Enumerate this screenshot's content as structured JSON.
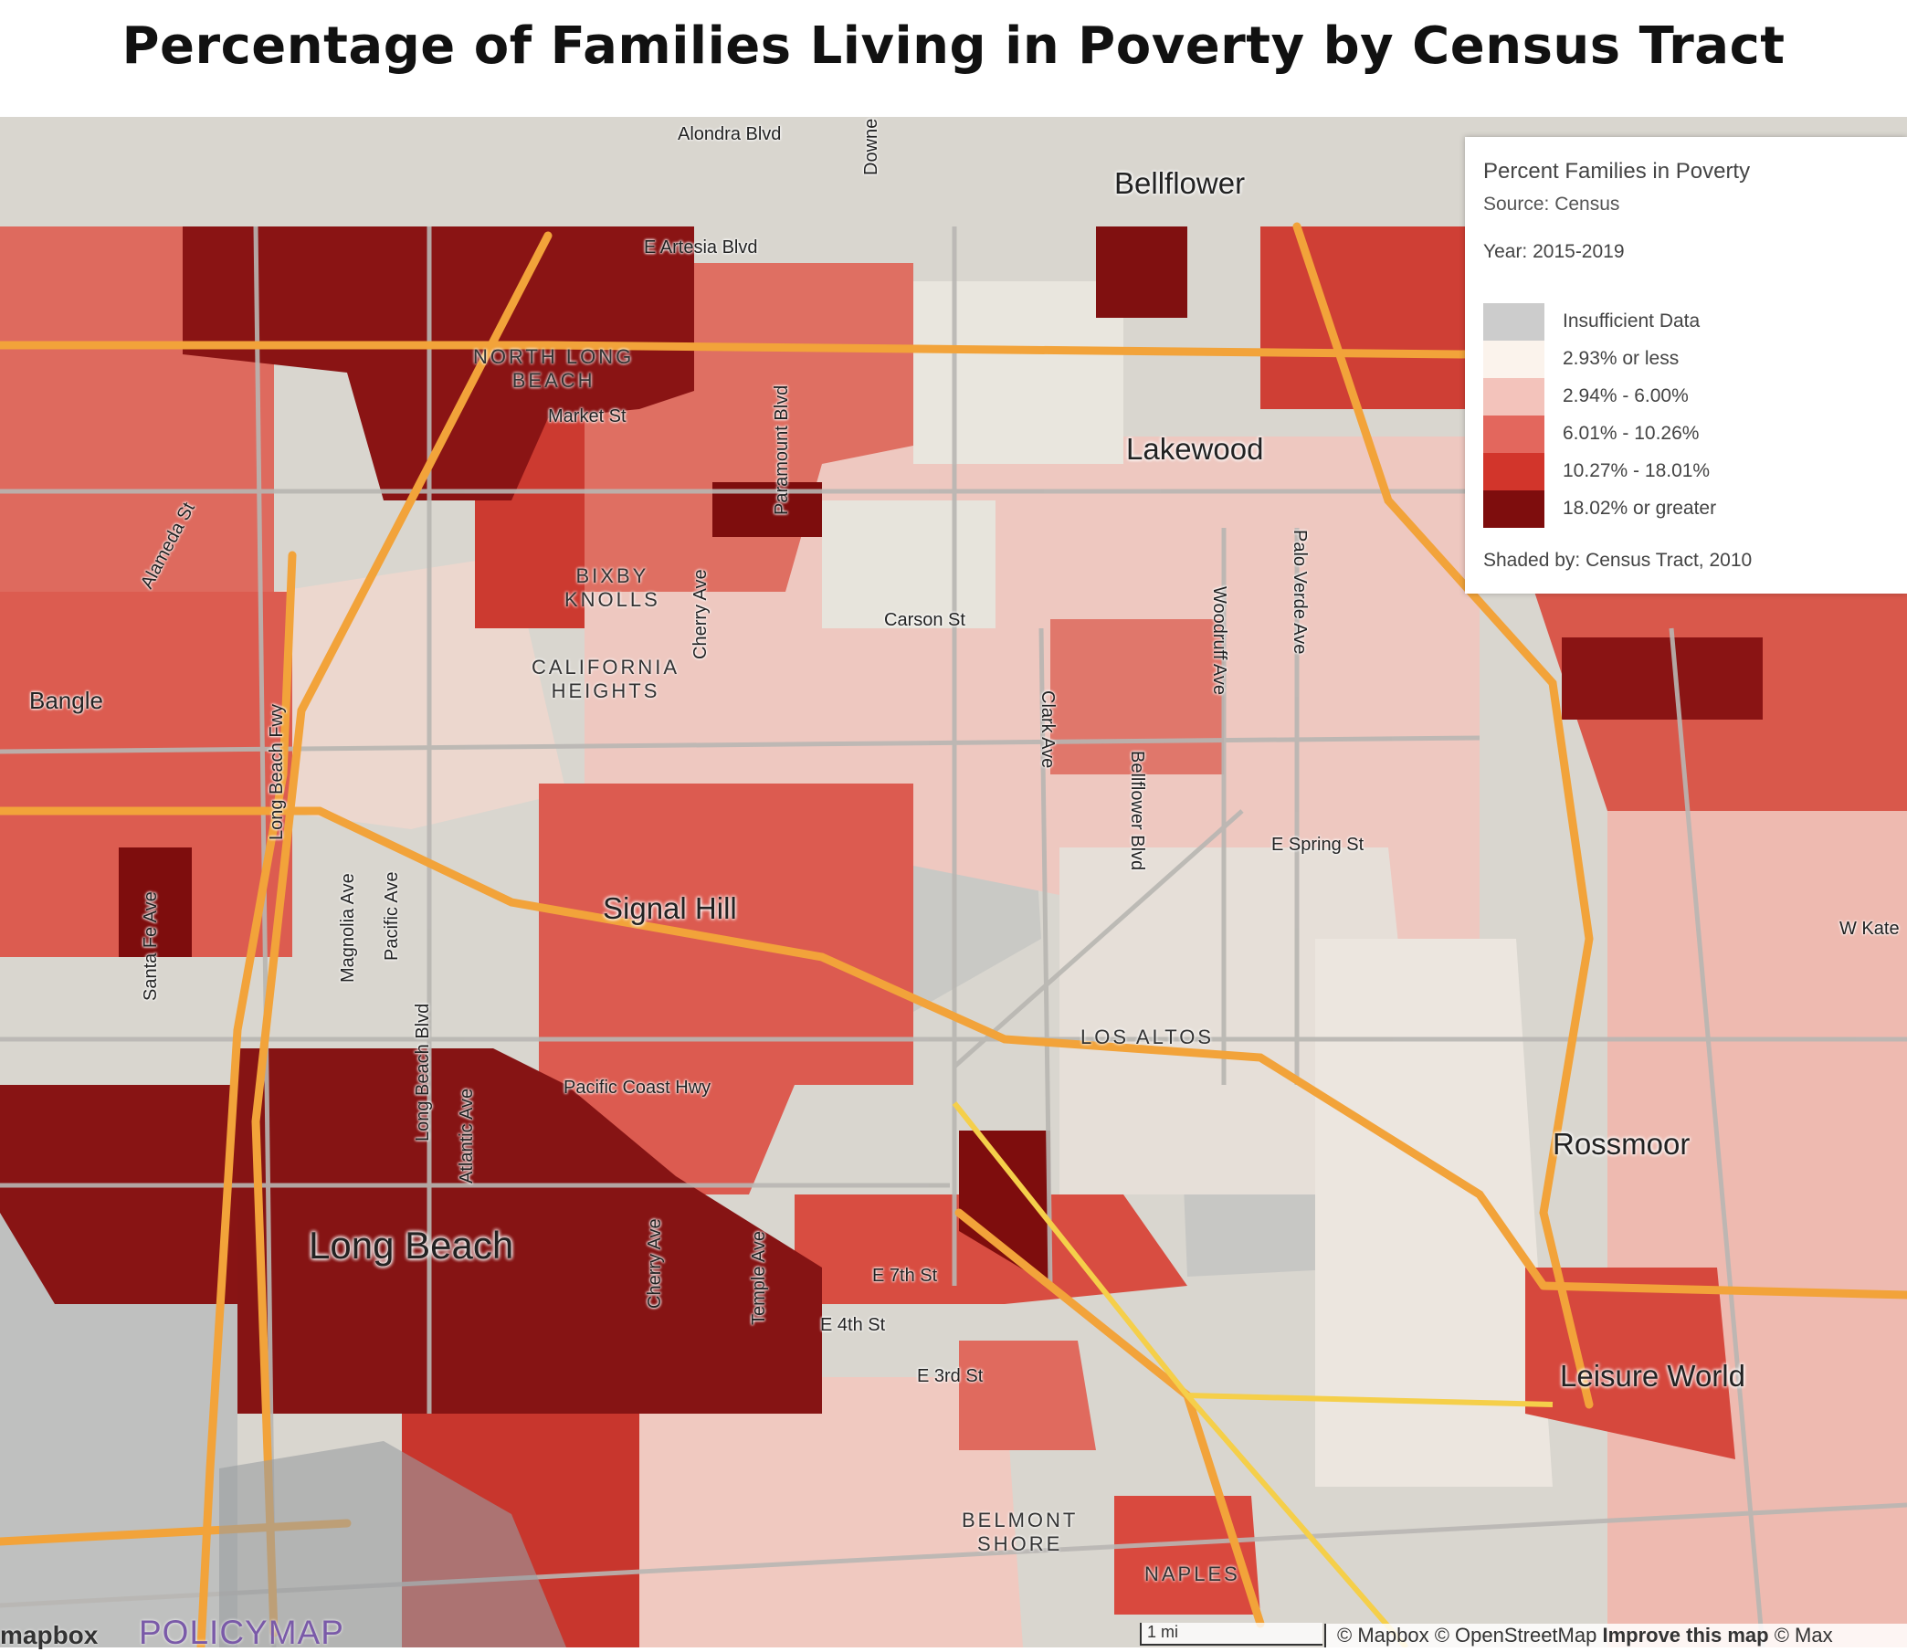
{
  "title": "Percentage of Families Living in Poverty by Census Tract",
  "legend": {
    "title": "Percent Families in Poverty",
    "source": "Source: Census",
    "year": "Year: 2015-2019",
    "items": [
      {
        "label": "Insufficient Data",
        "color": "#cccccc"
      },
      {
        "label": "2.93% or less",
        "color": "#fbf3ec"
      },
      {
        "label": "2.94% - 6.00%",
        "color": "#f3c3bb"
      },
      {
        "label": "6.01% - 10.26%",
        "color": "#e3675d"
      },
      {
        "label": "10.27% - 18.01%",
        "color": "#d2352b"
      },
      {
        "label": "18.02% or greater",
        "color": "#7e0d0d"
      }
    ],
    "shaded_by": "Shaded by: Census Tract, 2010"
  },
  "places": {
    "bellflower": "Bellflower",
    "lakewood": "Lakewood",
    "signal_hill": "Signal Hill",
    "long_beach": "Long Beach",
    "rossmoor": "Rossmoor",
    "leisure_world": "Leisure World",
    "bangle": "Bangle"
  },
  "neighborhoods": {
    "north_long_beach": "NORTH LONG\nBEACH",
    "bixby_knolls": "BIXBY\nKNOLLS",
    "california_heights": "CALIFORNIA\nHEIGHTS",
    "los_altos": "LOS ALTOS",
    "belmont_shore": "BELMONT\nSHORE",
    "naples": "NAPLES"
  },
  "streets": {
    "alondra": "Alondra Blvd",
    "downey": "Downe",
    "artesia": "E Artesia Blvd",
    "market": "Market St",
    "paramount": "Paramount Blvd",
    "alameda": "Alameda St",
    "cherry_n": "Cherry Ave",
    "carson": "Carson St",
    "palo_verde": "Palo Verde Ave",
    "woodruff": "Woodruff Ave",
    "clark": "Clark Ave",
    "bellflower_blvd": "Bellflower Blvd",
    "long_beach_fwy": "Long Beach Fwy",
    "spring": "E Spring St",
    "santa_fe": "Santa Fe Ave",
    "magnolia": "Magnolia Ave",
    "pacific": "Pacific Ave",
    "long_beach_blvd": "Long Beach Blvd",
    "atlantic": "Atlantic Ave",
    "pch": "Pacific Coast Hwy",
    "cherry_s": "Cherry Ave",
    "temple": "Temple Ave",
    "e7th": "E 7th St",
    "e4th": "E 4th St",
    "e3rd": "E 3rd St",
    "katella": "W Kate"
  },
  "footer": {
    "mapbox_logo": "mapbox",
    "policymap_logo": "POLICYMAP",
    "scale": "1 mi",
    "attribution_a": "© Mapbox © OpenStreetMap ",
    "attribution_b": "Improve this map",
    "attribution_c": " © Max"
  }
}
